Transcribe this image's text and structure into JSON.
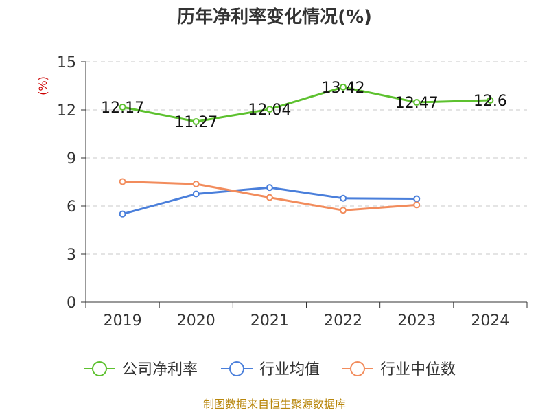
{
  "chart_data": {
    "type": "line",
    "title": "历年净利率变化情况(%)",
    "ylabel": "(%)",
    "xlabel": "",
    "categories": [
      "2019",
      "2020",
      "2021",
      "2022",
      "2023",
      "2024"
    ],
    "yticks": [
      "0",
      "3",
      "6",
      "9",
      "12",
      "15"
    ],
    "ylim": [
      0,
      15
    ],
    "grid": true,
    "legend_position": "bottom",
    "series": [
      {
        "name": "公司净利率",
        "color": "#5dc12f",
        "values": [
          12.17,
          11.27,
          12.04,
          13.42,
          12.47,
          12.6
        ],
        "labels": [
          "12.17",
          "11.27",
          "12.04",
          "13.42",
          "12.47",
          "12.6"
        ]
      },
      {
        "name": "行业均值",
        "color": "#4a7fdb",
        "values": [
          5.5,
          6.75,
          7.15,
          6.48,
          6.45,
          null
        ]
      },
      {
        "name": "行业中位数",
        "color": "#f28c5c",
        "values": [
          7.52,
          7.37,
          6.53,
          5.73,
          6.07,
          null
        ]
      }
    ]
  },
  "source_text": "制图数据来自恒生聚源数据库"
}
